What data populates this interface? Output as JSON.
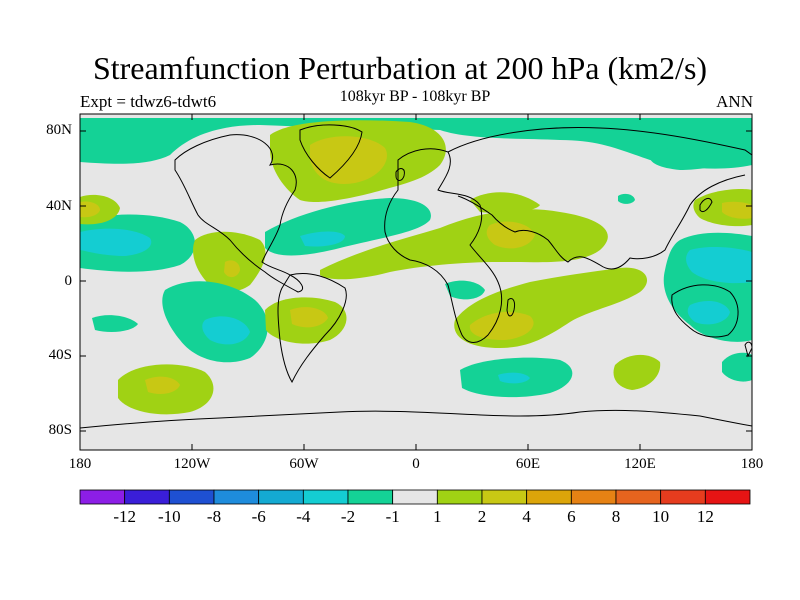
{
  "title": "Streamfunction Perturbation at 200 hPa (km2/s)",
  "experiment": "Expt = tdwz6-tdwt6",
  "period": "108kyr BP - 108kyr BP",
  "season": "ANN",
  "lat_ticks": [
    "80N",
    "40N",
    "0",
    "40S",
    "80S"
  ],
  "lon_ticks": [
    "180",
    "120W",
    "60W",
    "0",
    "60E",
    "120E",
    "180"
  ],
  "colorbar": {
    "labels": [
      "-12",
      "-10",
      "-8",
      "-6",
      "-4",
      "-2",
      "-1",
      "1",
      "2",
      "4",
      "6",
      "8",
      "10",
      "12"
    ],
    "colors": [
      "#8c1ee6",
      "#3a1ed8",
      "#1e50d2",
      "#1e8cdc",
      "#14aad2",
      "#14cdd2",
      "#14d296",
      "#e6e6e6",
      "#a0d214",
      "#c8c814",
      "#dca50a",
      "#e68214",
      "#e6641e",
      "#e63c1e",
      "#e61414"
    ]
  },
  "map_data": {
    "background_color": "#e6e6e6",
    "features": [
      {
        "type": "positive",
        "level": "2",
        "color": "#a0d214",
        "region": "North Atlantic / Greenland"
      },
      {
        "type": "positive",
        "level": "4",
        "color": "#c8c814",
        "region": "North Atlantic core"
      },
      {
        "type": "positive",
        "level": "2",
        "color": "#a0d214",
        "region": "Northern Africa to Asia band"
      },
      {
        "type": "positive",
        "level": "4",
        "color": "#c8c814",
        "region": "Arabia"
      },
      {
        "type": "positive",
        "level": "2",
        "color": "#a0d214",
        "region": "Southern Africa / Indian Ocean"
      },
      {
        "type": "positive",
        "level": "4",
        "color": "#c8c814",
        "region": "Southern Africa core"
      },
      {
        "type": "positive",
        "level": "2",
        "color": "#a0d214",
        "region": "South Atlantic off Brazil"
      },
      {
        "type": "positive",
        "level": "4",
        "color": "#c8c814",
        "region": "South Atlantic core"
      },
      {
        "type": "positive",
        "level": "2",
        "color": "#a0d214",
        "region": "Central America"
      },
      {
        "type": "positive",
        "level": "2",
        "color": "#a0d214",
        "region": "Southern Ocean Pacific"
      },
      {
        "type": "positive",
        "level": "4",
        "color": "#c8c814",
        "region": "Southern Ocean Pacific core"
      },
      {
        "type": "positive",
        "level": "2",
        "color": "#a0d214",
        "region": "Western Pacific near Japan"
      },
      {
        "type": "positive",
        "level": "4",
        "color": "#c8c814",
        "region": "Western Pacific core"
      },
      {
        "type": "positive",
        "level": "2",
        "color": "#a0d214",
        "region": "South Indian Ocean"
      },
      {
        "type": "negative",
        "level": "-2",
        "color": "#14d296",
        "region": "Arctic"
      },
      {
        "type": "negative",
        "level": "-2",
        "color": "#14d296",
        "region": "North Pacific tropics"
      },
      {
        "type": "negative",
        "level": "-4",
        "color": "#14cdd2",
        "region": "North Pacific core"
      },
      {
        "type": "negative",
        "level": "-2",
        "color": "#14d296",
        "region": "South Pacific"
      },
      {
        "type": "negative",
        "level": "-4",
        "color": "#14cdd2",
        "region": "South Pacific core"
      },
      {
        "type": "negative",
        "level": "-2",
        "color": "#14d296",
        "region": "Western Pacific / Australia"
      },
      {
        "type": "negative",
        "level": "-4",
        "color": "#14cdd2",
        "region": "Western Pacific core"
      },
      {
        "type": "negative",
        "level": "-2",
        "color": "#14d296",
        "region": "Southern Ocean Indian sector"
      },
      {
        "type": "negative",
        "level": "-2",
        "color": "#14d296",
        "region": "North Atlantic tropics"
      }
    ]
  }
}
